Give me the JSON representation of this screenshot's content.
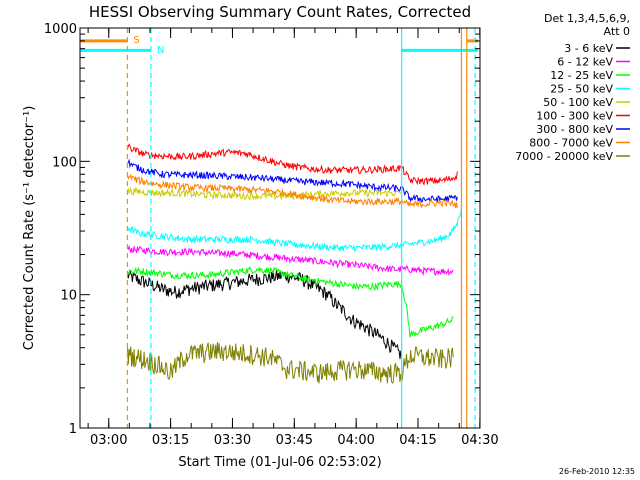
{
  "chart_data": {
    "type": "line",
    "title": "HESSI Observing Summary Count Rates, Corrected",
    "xlabel": "Start Time (01-Jul-06 02:53:02)",
    "ylabel": "Corrected Count Rate (s⁻¹ detector⁻¹)",
    "y_scale": "log",
    "ylim": [
      1,
      1000
    ],
    "y_ticks": [
      {
        "value": 1,
        "label": "1"
      },
      {
        "value": 10,
        "label": "10"
      },
      {
        "value": 100,
        "label": "100"
      },
      {
        "value": 1000,
        "label": "1000"
      }
    ],
    "x_unit": "minutes after 02:53:02",
    "xlim": [
      0,
      97
    ],
    "x_ticks": [
      {
        "value": 6.97,
        "label": "03:00"
      },
      {
        "value": 21.97,
        "label": "03:15"
      },
      {
        "value": 36.97,
        "label": "03:30"
      },
      {
        "value": 51.97,
        "label": "03:45"
      },
      {
        "value": 66.97,
        "label": "04:00"
      },
      {
        "value": 81.97,
        "label": "04:15"
      },
      {
        "value": 96.97,
        "label": "04:30"
      }
    ],
    "legend_header": [
      "Det 1,3,4,5,6,9,",
      "Att 0"
    ],
    "legend_placement": "right",
    "timestamp": "26-Feb-2010 12:35",
    "markers": [
      {
        "label": "S",
        "x": 11.5,
        "color": "#ff8c00",
        "style": "dashed"
      },
      {
        "label": "N",
        "x": 17.2,
        "color": "#00ffff",
        "style": "dashed"
      },
      {
        "label": "",
        "x": 78.0,
        "color": "#00ffff",
        "style": "solid"
      },
      {
        "label": "",
        "x": 92.5,
        "color": "#ff8c00",
        "style": "solid"
      },
      {
        "label": "",
        "x": 93.8,
        "color": "#ff8c00",
        "style": "solid"
      },
      {
        "label": "",
        "x": 95.8,
        "color": "#00ffff",
        "style": "dashed"
      }
    ],
    "flag_bars": [
      {
        "color": "#ff8c00",
        "y": 800,
        "segments": [
          [
            0,
            11.5
          ],
          [
            93.8,
            96.5
          ]
        ]
      },
      {
        "color": "#00ffff",
        "y": 680,
        "segments": [
          [
            0,
            17.2
          ],
          [
            78.0,
            96.5
          ]
        ]
      }
    ],
    "series": [
      {
        "name": "3 - 6 keV",
        "color": "#000000",
        "x": [
          11.5,
          14,
          17,
          20,
          23,
          26,
          30,
          34,
          38,
          42,
          46,
          50,
          54,
          56,
          58,
          60,
          62,
          64,
          66,
          68,
          70,
          72,
          74,
          76,
          78
        ],
        "y": [
          14,
          13,
          12,
          11,
          10.5,
          11,
          11.5,
          12,
          12.5,
          13,
          13.5,
          14,
          13,
          12,
          11,
          10,
          8.5,
          7.5,
          6.5,
          6,
          5.5,
          5,
          4.5,
          4,
          3.5
        ]
      },
      {
        "name": "6 - 12 keV",
        "color": "#ff00ff",
        "x": [
          11.5,
          16,
          20,
          24,
          28,
          32,
          36,
          40,
          44,
          48,
          52,
          56,
          60,
          64,
          68,
          72,
          76,
          80,
          84,
          88,
          90.5
        ],
        "y": [
          22,
          21.5,
          21,
          21,
          21,
          20.5,
          20.5,
          20,
          19.5,
          19,
          18.5,
          18,
          17.5,
          17,
          16.5,
          16,
          15.5,
          15.5,
          15,
          15,
          15
        ]
      },
      {
        "name": "12 - 25 keV",
        "color": "#00ff00",
        "x": [
          11.5,
          15,
          19,
          23,
          27,
          31,
          35,
          39,
          43,
          47,
          51,
          55,
          59,
          63,
          67,
          71,
          75,
          78,
          80,
          84,
          88,
          90.5
        ],
        "y": [
          15,
          15,
          14.5,
          14,
          14,
          14,
          14.5,
          15,
          15.5,
          15,
          14,
          13,
          12.5,
          12,
          11.5,
          11.5,
          12,
          12,
          5,
          5.5,
          6,
          6.5
        ]
      },
      {
        "name": "25 - 50 keV",
        "color": "#00ffff",
        "x": [
          11.5,
          14,
          18,
          22,
          26,
          30,
          34,
          38,
          42,
          46,
          50,
          54,
          58,
          62,
          66,
          70,
          74,
          78,
          82,
          86,
          88,
          90,
          91.5,
          92.5
        ],
        "y": [
          32,
          29,
          28,
          27,
          26,
          26,
          26,
          26,
          26,
          25,
          24,
          23.5,
          23,
          22.5,
          22.5,
          22.5,
          23,
          23.5,
          24.5,
          25.5,
          26.5,
          29,
          34,
          45
        ]
      },
      {
        "name": "50 - 100 keV",
        "color": "#cccc00",
        "x": [
          11.5,
          15,
          19,
          23,
          27,
          31,
          35,
          39,
          43,
          47,
          51,
          55,
          59,
          63,
          67,
          71,
          75,
          78
        ],
        "y": [
          60,
          59,
          58,
          58,
          57,
          56,
          56,
          55,
          55,
          55,
          55,
          56,
          57,
          58,
          58,
          58,
          58,
          58
        ]
      },
      {
        "name": "100 - 300 keV",
        "color": "#ff0000",
        "x": [
          11.5,
          13,
          16,
          20,
          24,
          28,
          32,
          36,
          40,
          44,
          48,
          52,
          56,
          60,
          64,
          68,
          72,
          76,
          78,
          80,
          84,
          88,
          90.5,
          91.5
        ],
        "y": [
          130,
          122,
          112,
          110,
          108,
          110,
          114,
          117,
          115,
          106,
          97,
          91,
          88,
          86,
          86,
          86,
          87,
          88,
          89,
          72,
          71,
          72,
          75,
          80
        ]
      },
      {
        "name": "300 - 800 keV",
        "color": "#0000ff",
        "x": [
          11.5,
          13,
          16,
          20,
          24,
          28,
          32,
          36,
          40,
          44,
          48,
          52,
          56,
          60,
          64,
          68,
          72,
          76,
          78,
          80,
          84,
          88,
          90.5,
          91.5
        ],
        "y": [
          100,
          92,
          85,
          80,
          79,
          79,
          78,
          77,
          76,
          75,
          73,
          71,
          70,
          69,
          68,
          66,
          64,
          63,
          62,
          53,
          52,
          52,
          53,
          54
        ]
      },
      {
        "name": "800 - 7000 keV",
        "color": "#ff8000",
        "x": [
          11.5,
          14,
          18,
          22,
          26,
          30,
          34,
          38,
          42,
          46,
          50,
          54,
          58,
          62,
          66,
          70,
          74,
          78,
          80,
          84,
          88,
          90.5,
          91.5
        ],
        "y": [
          78,
          72,
          68,
          66,
          64,
          63,
          63,
          62,
          61,
          60,
          58,
          55,
          53,
          51,
          50,
          50,
          50,
          50,
          47,
          48,
          49,
          48,
          47
        ]
      },
      {
        "name": "7000 - 20000 keV",
        "color": "#808000",
        "x": [
          11.5,
          14,
          18,
          22,
          26,
          30,
          34,
          38,
          42,
          46,
          50,
          54,
          58,
          62,
          66,
          70,
          74,
          78,
          80,
          84,
          88,
          90.5
        ],
        "y": [
          3.6,
          3.4,
          3.1,
          2.6,
          3.6,
          3.7,
          3.8,
          3.7,
          3.6,
          3.4,
          2.8,
          2.7,
          2.6,
          2.7,
          2.8,
          2.7,
          2.6,
          2.6,
          3.5,
          3.4,
          3.3,
          3.4
        ]
      }
    ]
  }
}
